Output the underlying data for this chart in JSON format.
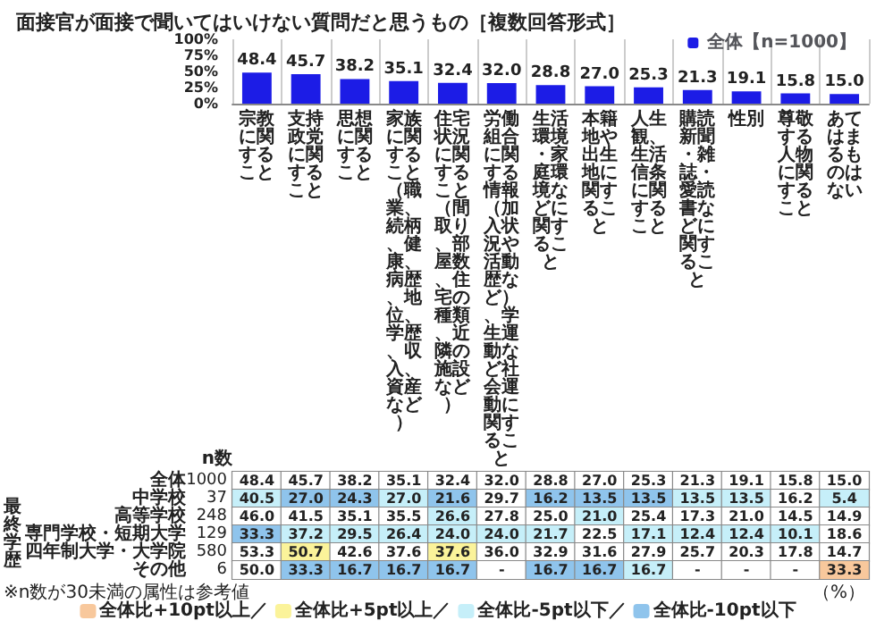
{
  "chart_data": [
    {
      "type": "bar",
      "title": "面接官が面接で聞いてはいけない質問だと思うもの［複数回答形式］",
      "categories": [
        "宗教に関すること",
        "支持政党に関すること",
        "思想に関すること",
        "家族に関すること（職業、続柄、健康、病歴、地位、学歴、収入、資産など）",
        "住宅状況に関すること（間取り、部屋数、住宅の種類、近隣の施設など）",
        "労働組合に関する情報（加入状況や活動歴など）、学生運動など社会運動に関すること",
        "生活環境・家庭環境などに関すること",
        "本籍地や出生地に関すること",
        "人生観、生活信条に関すること",
        "購読新聞・雑誌・愛読書などに関すること",
        "性別",
        "尊敬する人物に関すること",
        "あてはまるものはない"
      ],
      "series": [
        {
          "name": "全体【n=1000】",
          "color": "#1c1ce6",
          "values": [
            48.4,
            45.7,
            38.2,
            35.1,
            32.4,
            32.0,
            28.8,
            27.0,
            25.3,
            21.3,
            19.1,
            15.8,
            15.0
          ],
          "value_labels": [
            "48.4",
            "45.7",
            "38.2",
            "35.1",
            "32.4",
            "32.0",
            "28.8",
            "27.0",
            "25.3",
            "21.3",
            "19.1",
            "15.8",
            "15.0"
          ]
        }
      ],
      "ylim": [
        0,
        100
      ],
      "yticks": [
        {
          "value": 0,
          "label": "0%"
        },
        {
          "value": 25,
          "label": "25%"
        },
        {
          "value": 50,
          "label": "50%"
        },
        {
          "value": 75,
          "label": "75%"
        },
        {
          "value": 100,
          "label": "100%"
        }
      ],
      "grid": "x",
      "legend": "top right"
    },
    {
      "type": "heatmap",
      "categories": [
        "宗教に関すること",
        "支持政党に関すること",
        "思想に関すること",
        "家族に関すること（職業、続柄、健康、病歴、地位、学歴、収入、資産など）",
        "住宅状況に関すること（間取り、部屋数、住宅の種類、近隣の施設など）",
        "労働組合に関する情報（加入状況や活動歴など）、学生運動など社会運動に関すること",
        "生活環境・家庭環境などに関すること",
        "本籍地や出生地に関すること",
        "人生観、生活信条に関すること",
        "購読新聞・雑誌・愛読書などに関すること",
        "性別",
        "尊敬する人物に関すること",
        "あてはまるものはない"
      ],
      "y_categories": [
        "全体",
        "中学校",
        "高等学校",
        "専門学校・短期大学",
        "四年制大学・大学院",
        "その他"
      ],
      "y2_categories": [
        "1000",
        "37",
        "248",
        "129",
        "580",
        "6"
      ],
      "y2label": "n数",
      "cells": [
        [
          48.4,
          45.7,
          38.2,
          35.1,
          32.4,
          32.0,
          28.8,
          27.0,
          25.3,
          21.3,
          19.1,
          15.8,
          15.0
        ],
        [
          40.5,
          27.0,
          24.3,
          27.0,
          21.6,
          29.7,
          16.2,
          13.5,
          13.5,
          13.5,
          13.5,
          16.2,
          5.4
        ],
        [
          46.0,
          41.5,
          35.1,
          35.5,
          26.6,
          27.8,
          25.0,
          21.0,
          25.4,
          17.3,
          21.0,
          14.5,
          14.9
        ],
        [
          33.3,
          37.2,
          29.5,
          26.4,
          24.0,
          24.0,
          21.7,
          22.5,
          17.1,
          12.4,
          12.4,
          10.1,
          18.6
        ],
        [
          53.3,
          50.7,
          42.6,
          37.6,
          37.6,
          36.0,
          32.9,
          31.6,
          27.9,
          25.7,
          20.3,
          17.8,
          14.7
        ],
        [
          50.0,
          33.3,
          16.7,
          16.7,
          16.7,
          null,
          16.7,
          16.7,
          16.7,
          null,
          null,
          null,
          33.3
        ]
      ],
      "cell_labels": [
        [
          "48.4",
          "45.7",
          "38.2",
          "35.1",
          "32.4",
          "32.0",
          "28.8",
          "27.0",
          "25.3",
          "21.3",
          "19.1",
          "15.8",
          "15.0"
        ],
        [
          "40.5",
          "27.0",
          "24.3",
          "27.0",
          "21.6",
          "29.7",
          "16.2",
          "13.5",
          "13.5",
          "13.5",
          "13.5",
          "16.2",
          "5.4"
        ],
        [
          "46.0",
          "41.5",
          "35.1",
          "35.5",
          "26.6",
          "27.8",
          "25.0",
          "21.0",
          "25.4",
          "17.3",
          "21.0",
          "14.5",
          "14.9"
        ],
        [
          "33.3",
          "37.2",
          "29.5",
          "26.4",
          "24.0",
          "24.0",
          "21.7",
          "22.5",
          "17.1",
          "12.4",
          "12.4",
          "10.1",
          "18.6"
        ],
        [
          "53.3",
          "50.7",
          "42.6",
          "37.6",
          "37.6",
          "36.0",
          "32.9",
          "31.6",
          "27.9",
          "25.7",
          "20.3",
          "17.8",
          "14.7"
        ],
        [
          "50.0",
          "33.3",
          "16.7",
          "16.7",
          "16.7",
          "-",
          "16.7",
          "16.7",
          "16.7",
          "-",
          "-",
          "-",
          "33.3"
        ]
      ],
      "colors": [
        [
          null,
          null,
          null,
          null,
          null,
          null,
          null,
          null,
          null,
          null,
          null,
          null,
          null
        ],
        [
          "#c6eff9",
          "#8fc4ec",
          "#8fc4ec",
          "#c6eff9",
          "#8fc4ec",
          null,
          "#8fc4ec",
          "#8fc4ec",
          "#8fc4ec",
          "#c6eff9",
          "#c6eff9",
          null,
          "#c6eff9"
        ],
        [
          null,
          null,
          null,
          null,
          "#c6eff9",
          null,
          null,
          "#c6eff9",
          null,
          null,
          null,
          null,
          null
        ],
        [
          "#8fc4ec",
          "#c6eff9",
          "#c6eff9",
          "#c6eff9",
          "#c6eff9",
          "#c6eff9",
          "#c6eff9",
          null,
          "#c6eff9",
          "#c6eff9",
          "#c6eff9",
          "#c6eff9",
          null
        ],
        [
          null,
          "#fbf39a",
          null,
          null,
          "#fbf39a",
          null,
          null,
          null,
          null,
          null,
          null,
          null,
          null
        ],
        [
          null,
          "#8fc4ec",
          "#8fc4ec",
          "#8fc4ec",
          "#8fc4ec",
          null,
          "#8fc4ec",
          "#8fc4ec",
          "#c6eff9",
          null,
          null,
          null,
          "#f8c89c"
        ]
      ],
      "series": [
        {
          "name": "全体比+10pt以上／",
          "color": "#f8c89c",
          "values": [
            null,
            null,
            null,
            null,
            null,
            null,
            null,
            null,
            null,
            null,
            null,
            null,
            null
          ]
        },
        {
          "name": "全体比+5pt以上／",
          "color": "#fbf39a",
          "values": [
            null,
            null,
            null,
            null,
            null,
            null,
            null,
            null,
            null,
            null,
            null,
            null,
            null
          ]
        },
        {
          "name": "全体比-5pt以下／",
          "color": "#c6eff9",
          "values": [
            null,
            null,
            null,
            null,
            null,
            null,
            null,
            null,
            null,
            null,
            null,
            null,
            null
          ]
        },
        {
          "name": "全体比-10pt以下",
          "color": "#8fc4ec",
          "values": [
            null,
            null,
            null,
            null,
            null,
            null,
            null,
            null,
            null,
            null,
            null,
            null,
            null
          ]
        }
      ],
      "legend": "bottom",
      "annotations": [
        "最終学歴",
        "※n数が30未満の属性は参考値",
        "（%）"
      ],
      "tick_labels": "y"
    }
  ]
}
